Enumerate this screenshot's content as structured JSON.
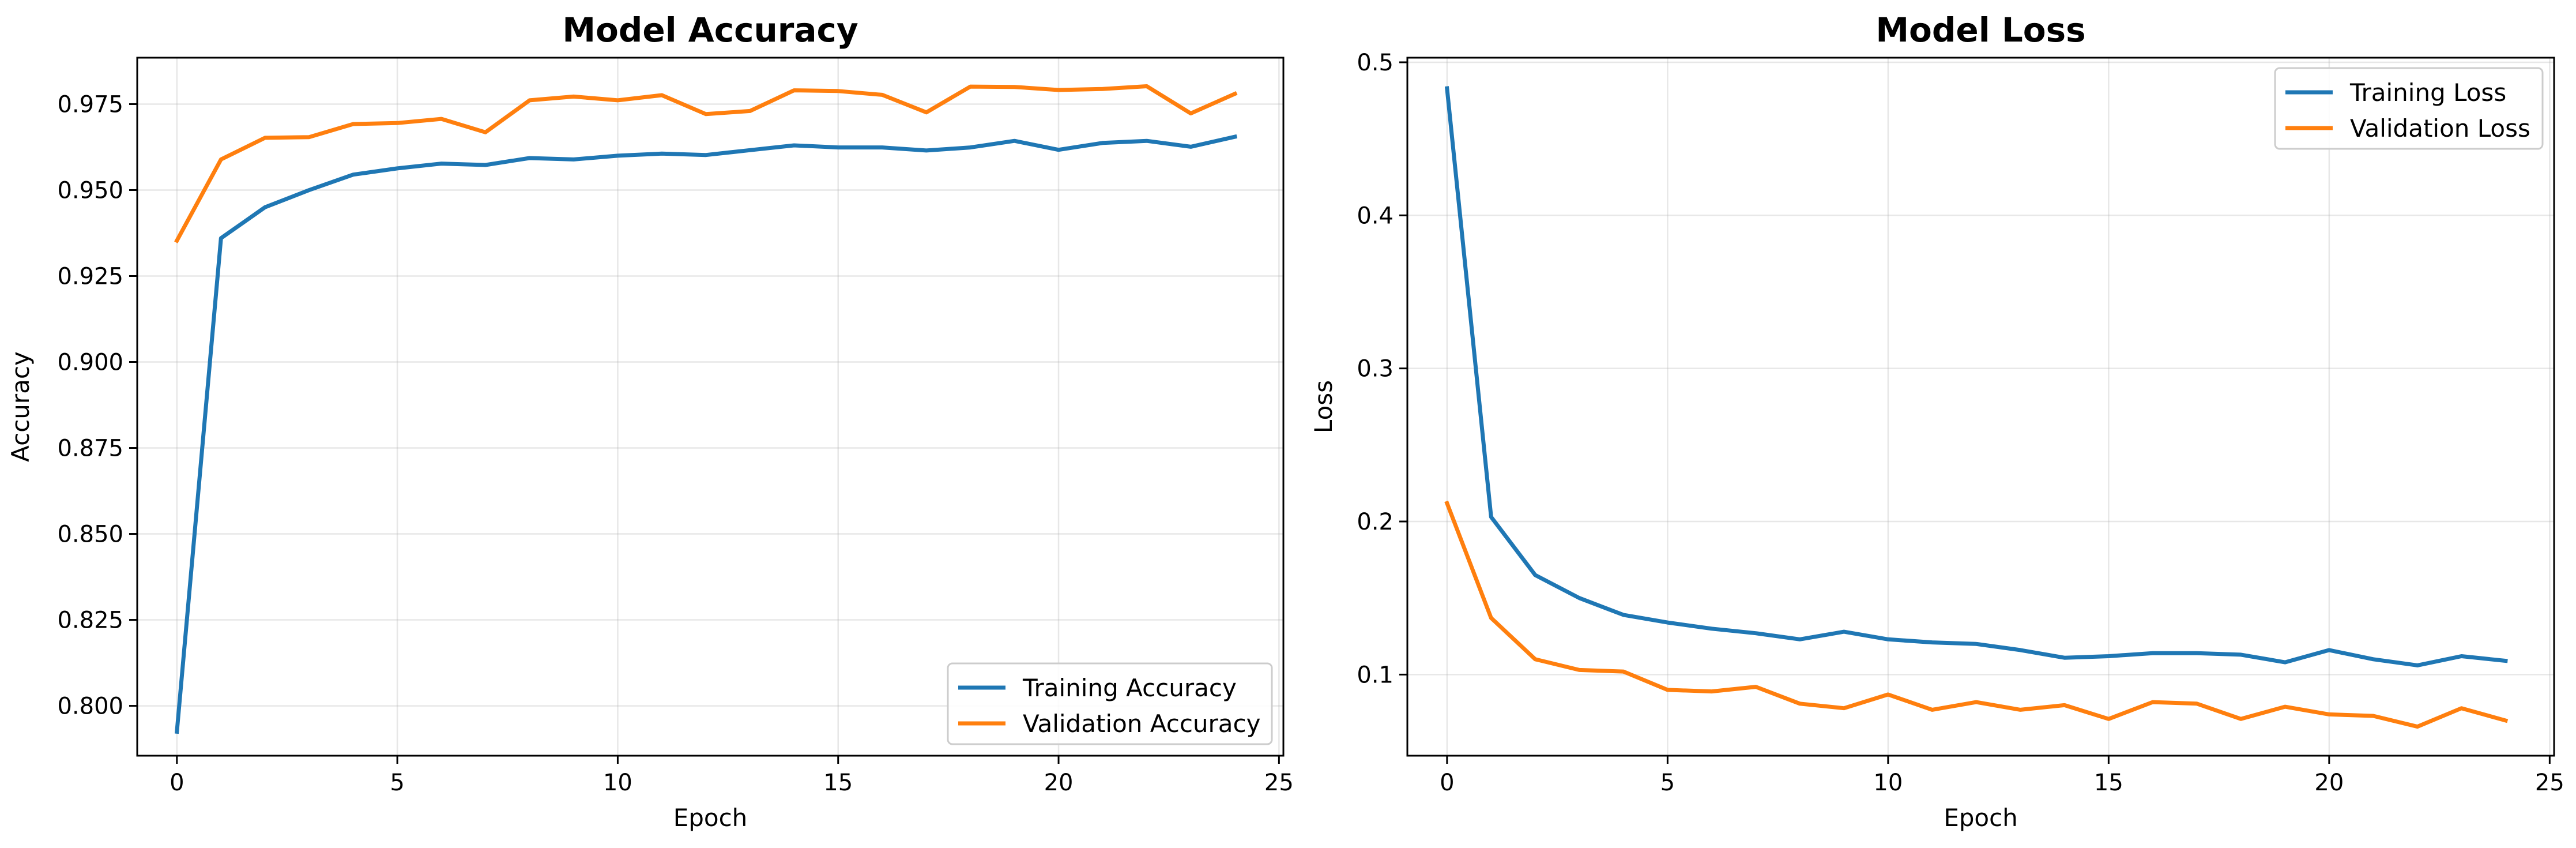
{
  "chart_data": [
    {
      "type": "line",
      "title": "Model Accuracy",
      "xlabel": "Epoch",
      "ylabel": "Accuracy",
      "xlim": [
        -0.9,
        25.1
      ],
      "ylim": [
        0.7855,
        0.9885
      ],
      "xticks": [
        0,
        5,
        10,
        15,
        20,
        25
      ],
      "xtick_labels": [
        "0",
        "5",
        "10",
        "15",
        "20",
        "25"
      ],
      "yticks": [
        0.8,
        0.825,
        0.85,
        0.875,
        0.9,
        0.925,
        0.95,
        0.975
      ],
      "ytick_labels": [
        "0.800",
        "0.825",
        "0.850",
        "0.875",
        "0.900",
        "0.925",
        "0.950",
        "0.975"
      ],
      "grid": true,
      "legend_position": "lower-right",
      "x": [
        0,
        1,
        2,
        3,
        4,
        5,
        6,
        7,
        8,
        9,
        10,
        11,
        12,
        13,
        14,
        15,
        16,
        17,
        18,
        19,
        20,
        21,
        22,
        23,
        24
      ],
      "series": [
        {
          "name": "Training Accuracy",
          "color": "#1f77b4",
          "values": [
            0.7925,
            0.936,
            0.945,
            0.95,
            0.9545,
            0.9563,
            0.9577,
            0.9573,
            0.9593,
            0.9589,
            0.96,
            0.9606,
            0.9602,
            0.9616,
            0.963,
            0.9624,
            0.9624,
            0.9615,
            0.9624,
            0.9643,
            0.9617,
            0.9637,
            0.9643,
            0.9626,
            0.9655
          ]
        },
        {
          "name": "Validation Accuracy",
          "color": "#ff7f0e",
          "values": [
            0.9353,
            0.9589,
            0.9652,
            0.9654,
            0.9692,
            0.9695,
            0.9707,
            0.9668,
            0.9761,
            0.9772,
            0.9761,
            0.9776,
            0.9721,
            0.973,
            0.979,
            0.9788,
            0.9777,
            0.9726,
            0.9801,
            0.98,
            0.9791,
            0.9794,
            0.9802,
            0.9723,
            0.978
          ]
        }
      ]
    },
    {
      "type": "line",
      "title": "Model Loss",
      "xlabel": "Epoch",
      "ylabel": "Loss",
      "xlim": [
        -0.9,
        25.1
      ],
      "ylim": [
        0.047,
        0.503
      ],
      "xticks": [
        0,
        5,
        10,
        15,
        20,
        25
      ],
      "xtick_labels": [
        "0",
        "5",
        "10",
        "15",
        "20",
        "25"
      ],
      "yticks": [
        0.1,
        0.2,
        0.3,
        0.4,
        0.5
      ],
      "ytick_labels": [
        "0.1",
        "0.2",
        "0.3",
        "0.4",
        "0.5"
      ],
      "grid": true,
      "legend_position": "upper-right",
      "x": [
        0,
        1,
        2,
        3,
        4,
        5,
        6,
        7,
        8,
        9,
        10,
        11,
        12,
        13,
        14,
        15,
        16,
        17,
        18,
        19,
        20,
        21,
        22,
        23,
        24
      ],
      "series": [
        {
          "name": "Training Loss",
          "color": "#1f77b4",
          "values": [
            0.483,
            0.203,
            0.165,
            0.15,
            0.139,
            0.134,
            0.13,
            0.127,
            0.123,
            0.128,
            0.123,
            0.121,
            0.12,
            0.116,
            0.111,
            0.112,
            0.114,
            0.114,
            0.113,
            0.108,
            0.116,
            0.11,
            0.106,
            0.112,
            0.109
          ]
        },
        {
          "name": "Validation Loss",
          "color": "#ff7f0e",
          "values": [
            0.212,
            0.137,
            0.11,
            0.103,
            0.102,
            0.09,
            0.089,
            0.092,
            0.081,
            0.078,
            0.087,
            0.077,
            0.082,
            0.077,
            0.08,
            0.071,
            0.082,
            0.081,
            0.071,
            0.079,
            0.074,
            0.073,
            0.066,
            0.078,
            0.07
          ]
        }
      ]
    }
  ]
}
